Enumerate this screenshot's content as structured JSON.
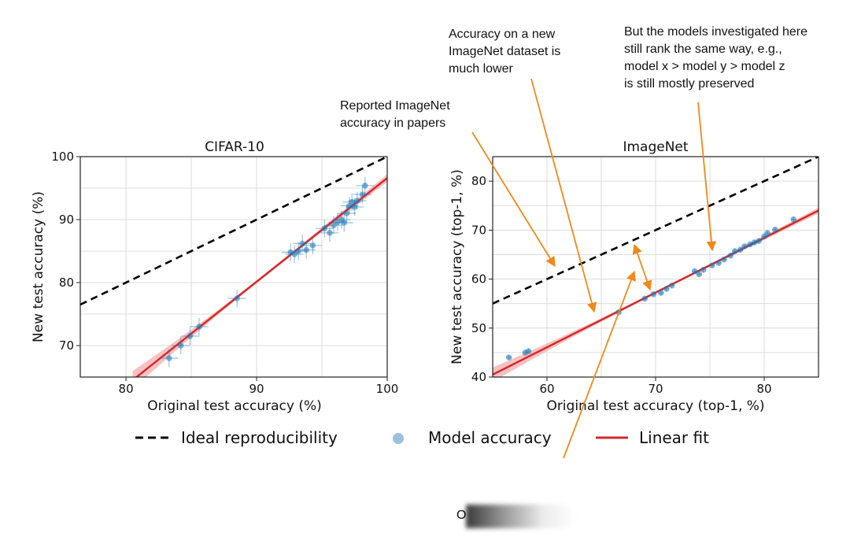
{
  "colors": {
    "ideal": "#000000",
    "points": "#1f77b4",
    "fit": "#d62728",
    "fit_band": "#f4a6a6",
    "annotation_arrow": "#f0891a",
    "grid": "#dcdcdc"
  },
  "legend": {
    "placement": "bottom-center",
    "entries": [
      "Ideal reproducibility",
      "Model accuracy",
      "Linear fit"
    ]
  },
  "annotations": [
    {
      "text": "Accuracy on a new\nImageNet dataset is\nmuch lower"
    },
    {
      "text": "But the models investigated here\nstill rank the same way, e.g.,\nmodel x > model y > model z\nis still mostly preserved"
    },
    {
      "text": "Reported ImageNet\naccuracy in papers"
    }
  ],
  "footer_fragment": "O",
  "chart_data": [
    {
      "type": "scatter",
      "title": "CIFAR-10",
      "xlabel": "Original test accuracy (%)",
      "ylabel": "New test accuracy (%)",
      "xlim": [
        76.5,
        100
      ],
      "ylim": [
        65,
        100
      ],
      "xticks": [
        80,
        90,
        100
      ],
      "yticks": [
        70,
        80,
        90,
        100
      ],
      "grid": true,
      "ideal_line": {
        "x": [
          76.5,
          100
        ],
        "y": [
          76.5,
          100
        ]
      },
      "linear_fit": {
        "x": [
          80.5,
          100
        ],
        "y": [
          64.5,
          96.6
        ]
      },
      "points": [
        {
          "x": 83.3,
          "y": 68.0
        },
        {
          "x": 84.2,
          "y": 70.0
        },
        {
          "x": 84.9,
          "y": 71.5
        },
        {
          "x": 85.6,
          "y": 73.0
        },
        {
          "x": 88.5,
          "y": 77.5
        },
        {
          "x": 92.6,
          "y": 84.8
        },
        {
          "x": 92.9,
          "y": 84.5
        },
        {
          "x": 93.2,
          "y": 85.0
        },
        {
          "x": 93.5,
          "y": 86.2
        },
        {
          "x": 93.8,
          "y": 85.2
        },
        {
          "x": 94.3,
          "y": 85.9
        },
        {
          "x": 95.2,
          "y": 88.6
        },
        {
          "x": 95.6,
          "y": 87.9
        },
        {
          "x": 95.9,
          "y": 89.1
        },
        {
          "x": 96.2,
          "y": 89.6
        },
        {
          "x": 96.5,
          "y": 90.0
        },
        {
          "x": 96.7,
          "y": 89.5
        },
        {
          "x": 96.9,
          "y": 91.0
        },
        {
          "x": 97.1,
          "y": 92.2
        },
        {
          "x": 97.3,
          "y": 92.8
        },
        {
          "x": 97.5,
          "y": 92.0
        },
        {
          "x": 97.7,
          "y": 93.0
        },
        {
          "x": 98.1,
          "y": 94.0
        },
        {
          "x": 98.3,
          "y": 95.4
        }
      ]
    },
    {
      "type": "scatter",
      "title": "ImageNet",
      "xlabel": "Original test accuracy (top-1, %)",
      "ylabel": "New test accuracy (top-1, %)",
      "xlim": [
        55,
        85
      ],
      "ylim": [
        40,
        85
      ],
      "xticks": [
        60,
        70,
        80
      ],
      "yticks": [
        40,
        50,
        60,
        70,
        80
      ],
      "grid": true,
      "ideal_line": {
        "x": [
          55,
          85
        ],
        "y": [
          55,
          85
        ]
      },
      "linear_fit": {
        "x": [
          55,
          85
        ],
        "y": [
          40.5,
          74.0
        ]
      },
      "points": [
        {
          "x": 56.5,
          "y": 44.0
        },
        {
          "x": 58.0,
          "y": 45.0
        },
        {
          "x": 58.3,
          "y": 45.3
        },
        {
          "x": 66.6,
          "y": 53.2
        },
        {
          "x": 69.0,
          "y": 56.0
        },
        {
          "x": 69.8,
          "y": 56.9
        },
        {
          "x": 70.5,
          "y": 57.2
        },
        {
          "x": 71.0,
          "y": 58.0
        },
        {
          "x": 71.5,
          "y": 58.7
        },
        {
          "x": 73.6,
          "y": 61.6
        },
        {
          "x": 74.0,
          "y": 61.0
        },
        {
          "x": 74.4,
          "y": 61.9
        },
        {
          "x": 75.2,
          "y": 62.8
        },
        {
          "x": 75.8,
          "y": 63.3
        },
        {
          "x": 76.3,
          "y": 64.0
        },
        {
          "x": 76.9,
          "y": 64.8
        },
        {
          "x": 77.3,
          "y": 65.7
        },
        {
          "x": 77.8,
          "y": 66.0
        },
        {
          "x": 78.2,
          "y": 66.7
        },
        {
          "x": 78.7,
          "y": 67.1
        },
        {
          "x": 79.1,
          "y": 67.5
        },
        {
          "x": 79.5,
          "y": 67.8
        },
        {
          "x": 80.0,
          "y": 68.7
        },
        {
          "x": 80.3,
          "y": 69.4
        },
        {
          "x": 81.0,
          "y": 70.1
        },
        {
          "x": 82.7,
          "y": 72.2
        }
      ]
    }
  ]
}
